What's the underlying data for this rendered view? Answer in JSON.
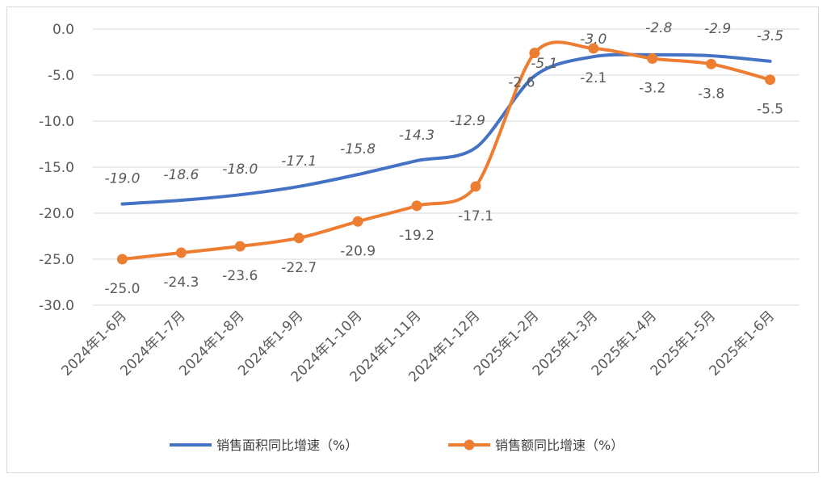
{
  "chart_data": {
    "type": "line",
    "categories": [
      "2024年1-6月",
      "2024年1-7月",
      "2024年1-8月",
      "2024年1-9月",
      "2024年1-10月",
      "2024年1-11月",
      "2024年1-12月",
      "2025年1-2月",
      "2025年1-3月",
      "2025年1-4月",
      "2025年1-5月",
      "2025年1-6月"
    ],
    "series": [
      {
        "name": "销售面积同比增速（%）",
        "color": "#4472c4",
        "marker": false,
        "values": [
          -19.0,
          -18.6,
          -18.0,
          -17.1,
          -15.8,
          -14.3,
          -12.9,
          -5.1,
          -3.0,
          -2.8,
          -2.9,
          -3.5
        ],
        "labels": [
          "-19.0",
          "-18.6",
          "-18.0",
          "-17.1",
          "-15.8",
          "-14.3",
          "-12.9",
          "-5.1",
          "-3.0",
          "-2.8",
          "-2.9",
          "-3.5"
        ]
      },
      {
        "name": "销售额同比增速（%）",
        "color": "#ed7d31",
        "marker": true,
        "values": [
          -25.0,
          -24.3,
          -23.6,
          -22.7,
          -20.9,
          -19.2,
          -17.1,
          -2.6,
          -2.1,
          -3.2,
          -3.8,
          -5.5
        ],
        "labels": [
          "-25.0",
          "-24.3",
          "-23.6",
          "-22.7",
          "-20.9",
          "-19.2",
          "-17.1",
          "-2.6",
          "-2.1",
          "-3.2",
          "-3.8",
          "-5.5"
        ]
      }
    ],
    "yticks": [
      "0.0",
      "-5.0",
      "-10.0",
      "-15.0",
      "-20.0",
      "-25.0",
      "-30.0"
    ],
    "ylim": [
      -30,
      0
    ],
    "grid": true,
    "legend_position": "bottom"
  }
}
